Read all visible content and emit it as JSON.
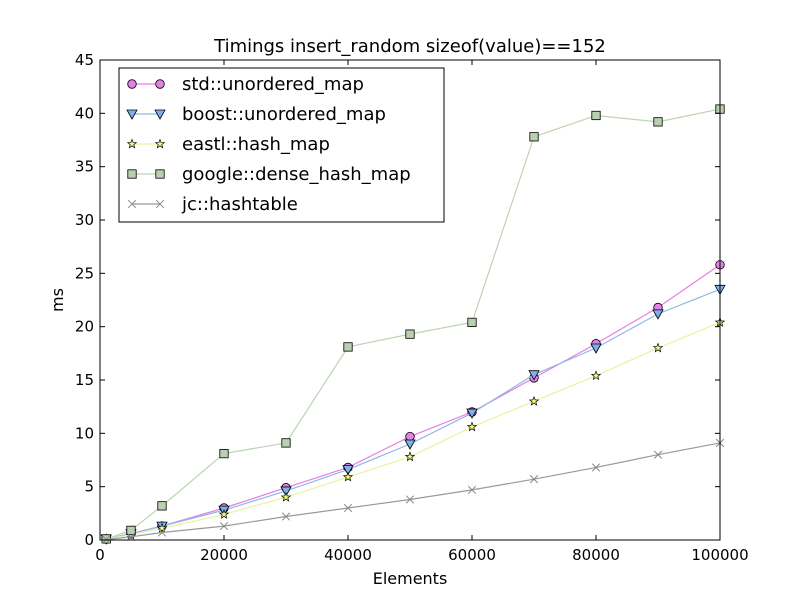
{
  "chart_data": {
    "type": "line",
    "title": "Timings insert_random sizeof(value)==152",
    "xlabel": "Elements",
    "ylabel": "ms",
    "xlim": [
      0,
      100000
    ],
    "ylim": [
      0,
      45
    ],
    "xticks": [
      0,
      20000,
      40000,
      60000,
      80000,
      100000
    ],
    "yticks": [
      0,
      5,
      10,
      15,
      20,
      25,
      30,
      35,
      40,
      45
    ],
    "grid": false,
    "legend_position": "top-left",
    "x": [
      1000,
      5000,
      10000,
      20000,
      30000,
      40000,
      50000,
      60000,
      70000,
      80000,
      90000,
      100000
    ],
    "series": [
      {
        "name": "std::unordered_map",
        "marker": "circle",
        "line_color": "#e67fe6",
        "fill_color": "#e480e6",
        "values": [
          0.1,
          0.6,
          1.3,
          3.0,
          4.9,
          6.8,
          9.7,
          12.0,
          15.2,
          18.4,
          21.8,
          25.8
        ]
      },
      {
        "name": "boost::unordered_map",
        "marker": "triangle-down",
        "line_color": "#8fb8e6",
        "fill_color": "#7fb0ee",
        "values": [
          0.1,
          0.6,
          1.3,
          2.8,
          4.6,
          6.6,
          9.0,
          11.9,
          15.5,
          18.0,
          21.2,
          23.5
        ]
      },
      {
        "name": "eastl::hash_map",
        "marker": "star",
        "line_color": "#e9f2a0",
        "fill_color": "#f7f77c",
        "values": [
          0.1,
          0.5,
          1.1,
          2.4,
          4.0,
          5.9,
          7.8,
          10.6,
          13.0,
          15.4,
          18.0,
          20.4
        ]
      },
      {
        "name": "google::dense_hash_map",
        "marker": "square",
        "line_color": "#bcd4b4",
        "fill_color": "#b8d0b0",
        "values": [
          0.1,
          0.9,
          3.2,
          8.1,
          9.1,
          18.1,
          19.3,
          20.4,
          37.8,
          39.8,
          39.2,
          40.4
        ]
      },
      {
        "name": "jc::hashtable",
        "marker": "x",
        "line_color": "#999999",
        "fill_color": "#888888",
        "values": [
          0.05,
          0.3,
          0.7,
          1.3,
          2.2,
          3.0,
          3.8,
          4.7,
          5.7,
          6.8,
          8.0,
          9.1
        ]
      }
    ]
  }
}
